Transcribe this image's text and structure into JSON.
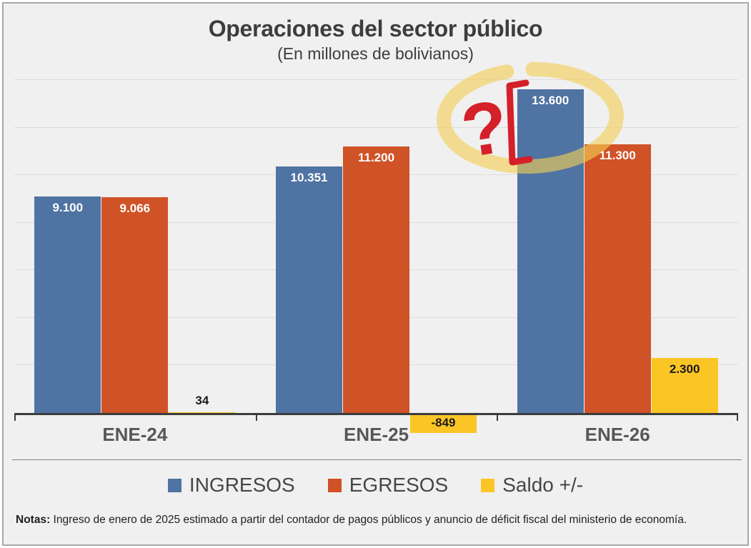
{
  "chart_data": {
    "type": "bar",
    "title": "Operaciones del sector público",
    "subtitle": "(En millones de bolivianos)",
    "categories": [
      "ENE-24",
      "ENE-25",
      "ENE-26"
    ],
    "series": [
      {
        "name": "INGRESOS",
        "color": "#4f73a2",
        "label_color": "#ffffff",
        "values": [
          9100,
          10351,
          13600
        ],
        "labels": [
          "9.100",
          "10.351",
          "13.600"
        ]
      },
      {
        "name": "EGRESOS",
        "color": "#d05227",
        "label_color": "#ffffff",
        "values": [
          9066,
          11200,
          11300
        ],
        "labels": [
          "9.066",
          "11.200",
          "11.300"
        ]
      },
      {
        "name": "Saldo +/-",
        "color": "#fcc526",
        "label_color": "#1a1a1a",
        "values": [
          34,
          -849,
          2300
        ],
        "labels": [
          "34",
          "-849",
          "2.300"
        ]
      }
    ],
    "ylim": [
      0,
      14000
    ],
    "gridline_step": 2000,
    "grid": true,
    "legend_position": "bottom",
    "annotation": {
      "type": "hand-drawn-highlight",
      "target": "INGRESOS ENE-26 (13.600)",
      "question_mark": "?",
      "marker_color": "#f3ce55",
      "ink_color": "#d42029"
    }
  },
  "notes": {
    "label": "Notas:",
    "text": " Ingreso de enero de 2025 estimado a partir del contador de pagos públicos y anuncio de déficit fiscal del ministerio de economía."
  }
}
